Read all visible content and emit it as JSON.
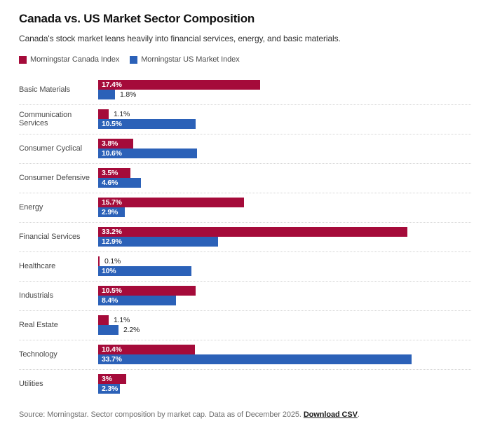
{
  "header": {
    "title": "Canada vs. US Market Sector Composition",
    "subtitle": "Canada's stock market leans heavily into financial services, energy, and basic materials."
  },
  "legend": [
    {
      "name": "canada",
      "label": "Morningstar Canada Index",
      "color": "#a50b3a"
    },
    {
      "name": "us",
      "label": "Morningstar US Market Index",
      "color": "#2b61b8"
    }
  ],
  "chart_data": {
    "type": "bar",
    "orientation": "horizontal",
    "title": "Canada vs. US Market Sector Composition",
    "categories": [
      "Basic Materials",
      "Communication Services",
      "Consumer Cyclical",
      "Consumer Defensive",
      "Energy",
      "Financial Services",
      "Healthcare",
      "Industrials",
      "Real Estate",
      "Technology",
      "Utilities"
    ],
    "series": [
      {
        "name": "Morningstar Canada Index",
        "color": "#a50b3a",
        "values": [
          17.4,
          1.1,
          3.8,
          3.5,
          15.7,
          33.2,
          0.1,
          10.5,
          1.1,
          10.4,
          3
        ],
        "labels": [
          "17.4%",
          "1.1%",
          "3.8%",
          "3.5%",
          "15.7%",
          "33.2%",
          "0.1%",
          "10.5%",
          "1.1%",
          "10.4%",
          "3%"
        ]
      },
      {
        "name": "Morningstar US Market Index",
        "color": "#2b61b8",
        "values": [
          1.8,
          10.5,
          10.6,
          4.6,
          2.9,
          12.9,
          10,
          8.4,
          2.2,
          33.7,
          2.3
        ],
        "labels": [
          "1.8%",
          "10.5%",
          "10.6%",
          "4.6%",
          "2.9%",
          "12.9%",
          "10%",
          "8.4%",
          "2.2%",
          "33.7%",
          "2.3%"
        ]
      }
    ],
    "value_unit": "%",
    "x_max": 33.7,
    "grid": "dotted-row-separators",
    "legend_position": "top",
    "value_labels": "inside-left when bar wide enough, otherwise outside-right"
  },
  "footer": {
    "source_text": "Source: Morningstar. Sector composition by market cap. Data as of December 2025. ",
    "link_label": "Download CSV",
    "after_link": "."
  }
}
